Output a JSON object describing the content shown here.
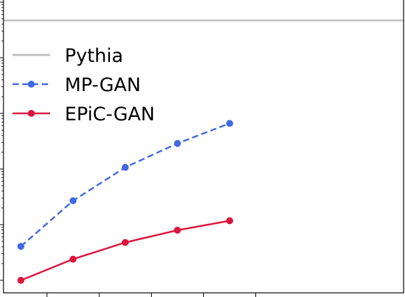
{
  "chart_data": {
    "type": "line",
    "title": "",
    "xlabel": "",
    "ylabel": "",
    "x": [
      1,
      2,
      3,
      4,
      5
    ],
    "y_scale": "log",
    "ylim_decades": [
      -0.02,
      5.0
    ],
    "grid": false,
    "legend": {
      "placement": "top-left",
      "entries": [
        "Pythia",
        "MP-GAN",
        "EPiC-GAN"
      ]
    },
    "reference_line": {
      "name": "Pythia",
      "value_decades": 4.67,
      "color": "#c0c0c0",
      "style": "solid"
    },
    "series": [
      {
        "name": "MP-GAN",
        "color": "#4169e1",
        "style": "dashed",
        "marker": "circle",
        "x": [
          0.5,
          1.5,
          2.5,
          3.5,
          4.5
        ],
        "y_decades": [
          0.61,
          1.43,
          2.03,
          2.46,
          2.82
        ]
      },
      {
        "name": "EPiC-GAN",
        "color": "#dc143c",
        "style": "solid",
        "marker": "circle",
        "x": [
          0.5,
          1.5,
          2.5,
          3.5,
          4.5
        ],
        "y_decades": [
          0.0,
          0.38,
          0.68,
          0.9,
          1.07
        ]
      }
    ]
  }
}
